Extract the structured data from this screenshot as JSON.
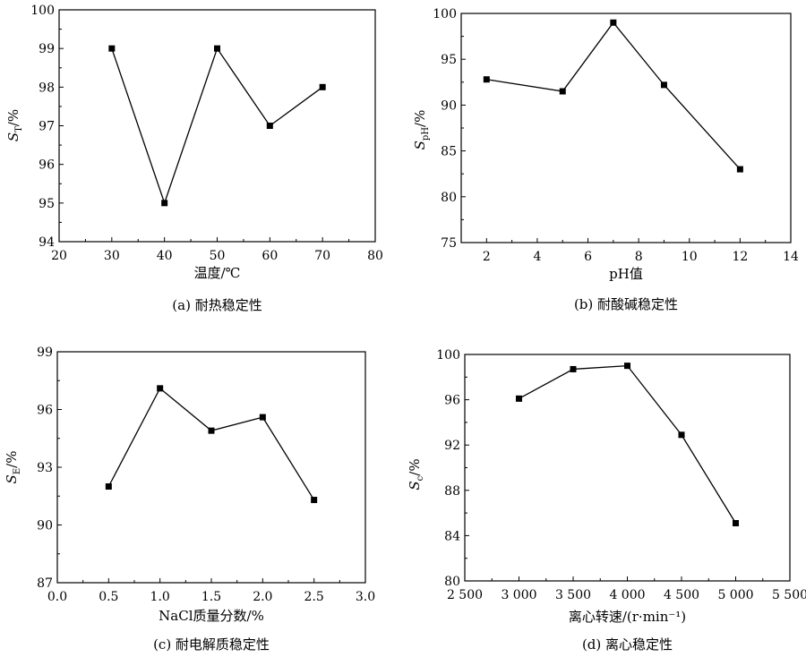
{
  "chart_data": [
    {
      "type": "line",
      "caption": "(a) 耐热稳定性",
      "xlabel": "温度/℃",
      "ylabel": {
        "main": "S",
        "sub": "T",
        "suffix": "/%"
      },
      "xlim": [
        20,
        80
      ],
      "ylim": [
        94,
        100
      ],
      "xticks": [
        20,
        30,
        40,
        50,
        60,
        70,
        80
      ],
      "xtick_labels": [
        "20",
        "30",
        "40",
        "50",
        "60",
        "70",
        "80"
      ],
      "yticks": [
        94,
        95,
        96,
        97,
        98,
        99,
        100
      ],
      "ytick_labels": [
        "94",
        "95",
        "96",
        "97",
        "98",
        "99",
        "100"
      ],
      "x": [
        30,
        40,
        50,
        60,
        70
      ],
      "y": [
        99,
        95,
        99,
        97,
        98
      ]
    },
    {
      "type": "line",
      "caption": "(b) 耐酸碱稳定性",
      "xlabel": "pH值",
      "ylabel": {
        "main": "S",
        "sub": "pH",
        "suffix": "/%"
      },
      "xlim": [
        1,
        14
      ],
      "ylim": [
        75,
        100
      ],
      "xticks": [
        2,
        4,
        6,
        8,
        10,
        12,
        14
      ],
      "xtick_labels": [
        "2",
        "4",
        "6",
        "8",
        "10",
        "12",
        "14"
      ],
      "yticks": [
        75,
        80,
        85,
        90,
        95,
        100
      ],
      "ytick_labels": [
        "75",
        "80",
        "85",
        "90",
        "95",
        "100"
      ],
      "x": [
        2,
        5,
        7,
        9,
        12
      ],
      "y": [
        92.8,
        91.5,
        99,
        92.2,
        83
      ]
    },
    {
      "type": "line",
      "caption": "(c) 耐电解质稳定性",
      "xlabel": "NaCl质量分数/%",
      "ylabel": {
        "main": "S",
        "sub": "E",
        "suffix": "/%"
      },
      "xlim": [
        0,
        3
      ],
      "ylim": [
        87,
        99
      ],
      "xticks": [
        0,
        0.5,
        1,
        1.5,
        2,
        2.5,
        3
      ],
      "xtick_labels": [
        "0.0",
        "0.5",
        "1.0",
        "1.5",
        "2.0",
        "2.5",
        "3.0"
      ],
      "yticks": [
        87,
        90,
        93,
        96,
        99
      ],
      "ytick_labels": [
        "87",
        "90",
        "93",
        "96",
        "99"
      ],
      "x": [
        0.5,
        1.0,
        1.5,
        2.0,
        2.5
      ],
      "y": [
        92,
        97.1,
        94.9,
        95.6,
        91.3
      ]
    },
    {
      "type": "line",
      "caption": "(d) 离心稳定性",
      "xlabel": "离心转速/(r·min⁻¹)",
      "ylabel": {
        "main": "S",
        "sub": "c",
        "suffix": "/%"
      },
      "xlim": [
        2500,
        5500
      ],
      "ylim": [
        80,
        100
      ],
      "xticks": [
        2500,
        3000,
        3500,
        4000,
        4500,
        5000,
        5500
      ],
      "xtick_labels": [
        "2 500",
        "3 000",
        "3 500",
        "4 000",
        "4 500",
        "5 000",
        "5 500"
      ],
      "yticks": [
        80,
        84,
        88,
        92,
        96,
        100
      ],
      "ytick_labels": [
        "80",
        "84",
        "88",
        "92",
        "96",
        "100"
      ],
      "x": [
        3000,
        3500,
        4000,
        4500,
        5000
      ],
      "y": [
        96.1,
        98.7,
        99.0,
        92.9,
        85.1
      ]
    }
  ]
}
